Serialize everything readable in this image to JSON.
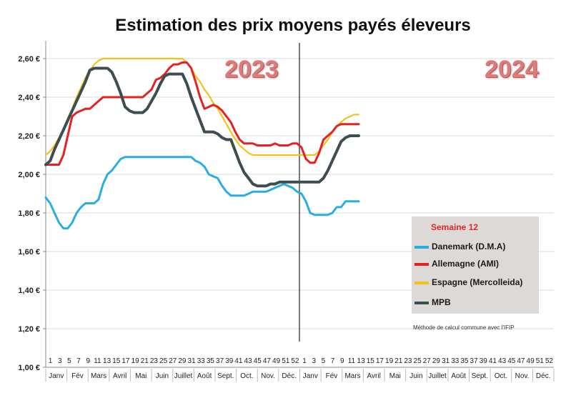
{
  "chart_data": {
    "type": "line",
    "title": "Estimation des prix moyens payés éleveurs",
    "ylim": [
      1.0,
      2.65
    ],
    "yticks": [
      "1,00 €",
      "1,20 €",
      "1,40 €",
      "1,60 €",
      "1,80 €",
      "2,00 €",
      "2,20 €",
      "2,40 €",
      "2,60 €"
    ],
    "ytick_values": [
      1.0,
      1.2,
      1.4,
      1.6,
      1.8,
      2.0,
      2.2,
      2.4,
      2.6
    ],
    "week_labels": [
      "1",
      "3",
      "5",
      "7",
      "9",
      "11",
      "13",
      "15",
      "17",
      "19",
      "21",
      "23",
      "25",
      "27",
      "29",
      "31",
      "33",
      "35",
      "37",
      "39",
      "41",
      "43",
      "45",
      "47",
      "49",
      "51",
      "52",
      "1",
      "3",
      "5",
      "7",
      "9",
      "11",
      "13",
      "15",
      "17",
      "19",
      "21",
      "23",
      "25",
      "27",
      "29",
      "31",
      "33",
      "35",
      "37",
      "39",
      "41",
      "43",
      "45",
      "47",
      "49",
      "51",
      "52"
    ],
    "months": [
      "Janv",
      "Fév",
      "Mars",
      "Avril",
      "Mai",
      "Juin",
      "Juillet",
      "Août",
      "Sept.",
      "Oct.",
      "Nov.",
      "Déc.",
      "Janv",
      "Fév",
      "Mars",
      "Avril",
      "Mai",
      "Juin",
      "Juillet",
      "Août",
      "Sept.",
      "Oct.",
      "Nov.",
      "Déc."
    ],
    "year_labels": [
      "2023",
      "2024"
    ],
    "grid": true,
    "legend_title": "Semaine 12",
    "series": [
      {
        "name": "Danemark (D.M.A)",
        "color": "#29aee0",
        "y": [
          1.88,
          1.85,
          1.8,
          1.75,
          1.72,
          1.72,
          1.75,
          1.8,
          1.83,
          1.85,
          1.85,
          1.85,
          1.87,
          1.95,
          2.0,
          2.02,
          2.05,
          2.08,
          2.09,
          2.09,
          2.09,
          2.09,
          2.09,
          2.09,
          2.09,
          2.09,
          2.09,
          2.09,
          2.09,
          2.09,
          2.09,
          2.09,
          2.09,
          2.09,
          2.07,
          2.06,
          2.04,
          2.0,
          1.99,
          1.98,
          1.94,
          1.91,
          1.89,
          1.89,
          1.89,
          1.89,
          1.9,
          1.91,
          1.91,
          1.91,
          1.91,
          1.92,
          1.93,
          1.94,
          1.95,
          1.94,
          1.93,
          1.91,
          1.9,
          1.86,
          1.8,
          1.79,
          1.79,
          1.79,
          1.79,
          1.8,
          1.83,
          1.83,
          1.86,
          1.86,
          1.86,
          1.86
        ]
      },
      {
        "name": "Allemagne (AMI)",
        "color": "#e62121",
        "y": [
          2.05,
          2.05,
          2.05,
          2.05,
          2.1,
          2.2,
          2.3,
          2.32,
          2.33,
          2.34,
          2.34,
          2.36,
          2.38,
          2.4,
          2.4,
          2.4,
          2.4,
          2.4,
          2.4,
          2.4,
          2.4,
          2.4,
          2.4,
          2.42,
          2.44,
          2.49,
          2.5,
          2.52,
          2.55,
          2.57,
          2.57,
          2.58,
          2.58,
          2.55,
          2.48,
          2.4,
          2.34,
          2.35,
          2.36,
          2.35,
          2.33,
          2.3,
          2.27,
          2.22,
          2.18,
          2.16,
          2.16,
          2.16,
          2.15,
          2.15,
          2.15,
          2.15,
          2.16,
          2.15,
          2.15,
          2.15,
          2.16,
          2.16,
          2.14,
          2.08,
          2.06,
          2.06,
          2.11,
          2.18,
          2.2,
          2.22,
          2.25,
          2.26,
          2.26,
          2.26,
          2.26,
          2.26
        ]
      },
      {
        "name": "Espagne (Mercolleida)",
        "color": "#f5c318",
        "y": [
          2.1,
          2.12,
          2.15,
          2.19,
          2.23,
          2.29,
          2.34,
          2.4,
          2.45,
          2.5,
          2.54,
          2.57,
          2.59,
          2.6,
          2.6,
          2.6,
          2.6,
          2.6,
          2.6,
          2.6,
          2.6,
          2.6,
          2.6,
          2.6,
          2.6,
          2.6,
          2.6,
          2.6,
          2.6,
          2.6,
          2.6,
          2.6,
          2.58,
          2.55,
          2.51,
          2.48,
          2.44,
          2.41,
          2.37,
          2.34,
          2.3,
          2.26,
          2.22,
          2.18,
          2.15,
          2.13,
          2.11,
          2.1,
          2.1,
          2.1,
          2.1,
          2.1,
          2.1,
          2.1,
          2.1,
          2.1,
          2.1,
          2.1,
          2.1,
          2.1,
          2.1,
          2.1,
          2.12,
          2.15,
          2.18,
          2.22,
          2.25,
          2.27,
          2.29,
          2.3,
          2.31,
          2.31
        ]
      },
      {
        "name": "MPB",
        "color": "#3c4e52",
        "y": [
          2.05,
          2.07,
          2.13,
          2.18,
          2.23,
          2.28,
          2.33,
          2.38,
          2.43,
          2.48,
          2.54,
          2.55,
          2.55,
          2.55,
          2.55,
          2.53,
          2.48,
          2.42,
          2.35,
          2.33,
          2.32,
          2.32,
          2.32,
          2.34,
          2.38,
          2.42,
          2.47,
          2.51,
          2.52,
          2.52,
          2.52,
          2.52,
          2.47,
          2.4,
          2.34,
          2.28,
          2.22,
          2.22,
          2.22,
          2.21,
          2.19,
          2.18,
          2.18,
          2.12,
          2.06,
          2.01,
          1.98,
          1.95,
          1.94,
          1.94,
          1.94,
          1.95,
          1.95,
          1.96,
          1.96,
          1.96,
          1.96,
          1.96,
          1.96,
          1.96,
          1.96,
          1.96,
          1.96,
          1.98,
          2.02,
          2.07,
          2.12,
          2.17,
          2.19,
          2.2,
          2.2,
          2.2
        ]
      }
    ]
  },
  "note": "Méthode de calcul commune avec l'IFIP"
}
